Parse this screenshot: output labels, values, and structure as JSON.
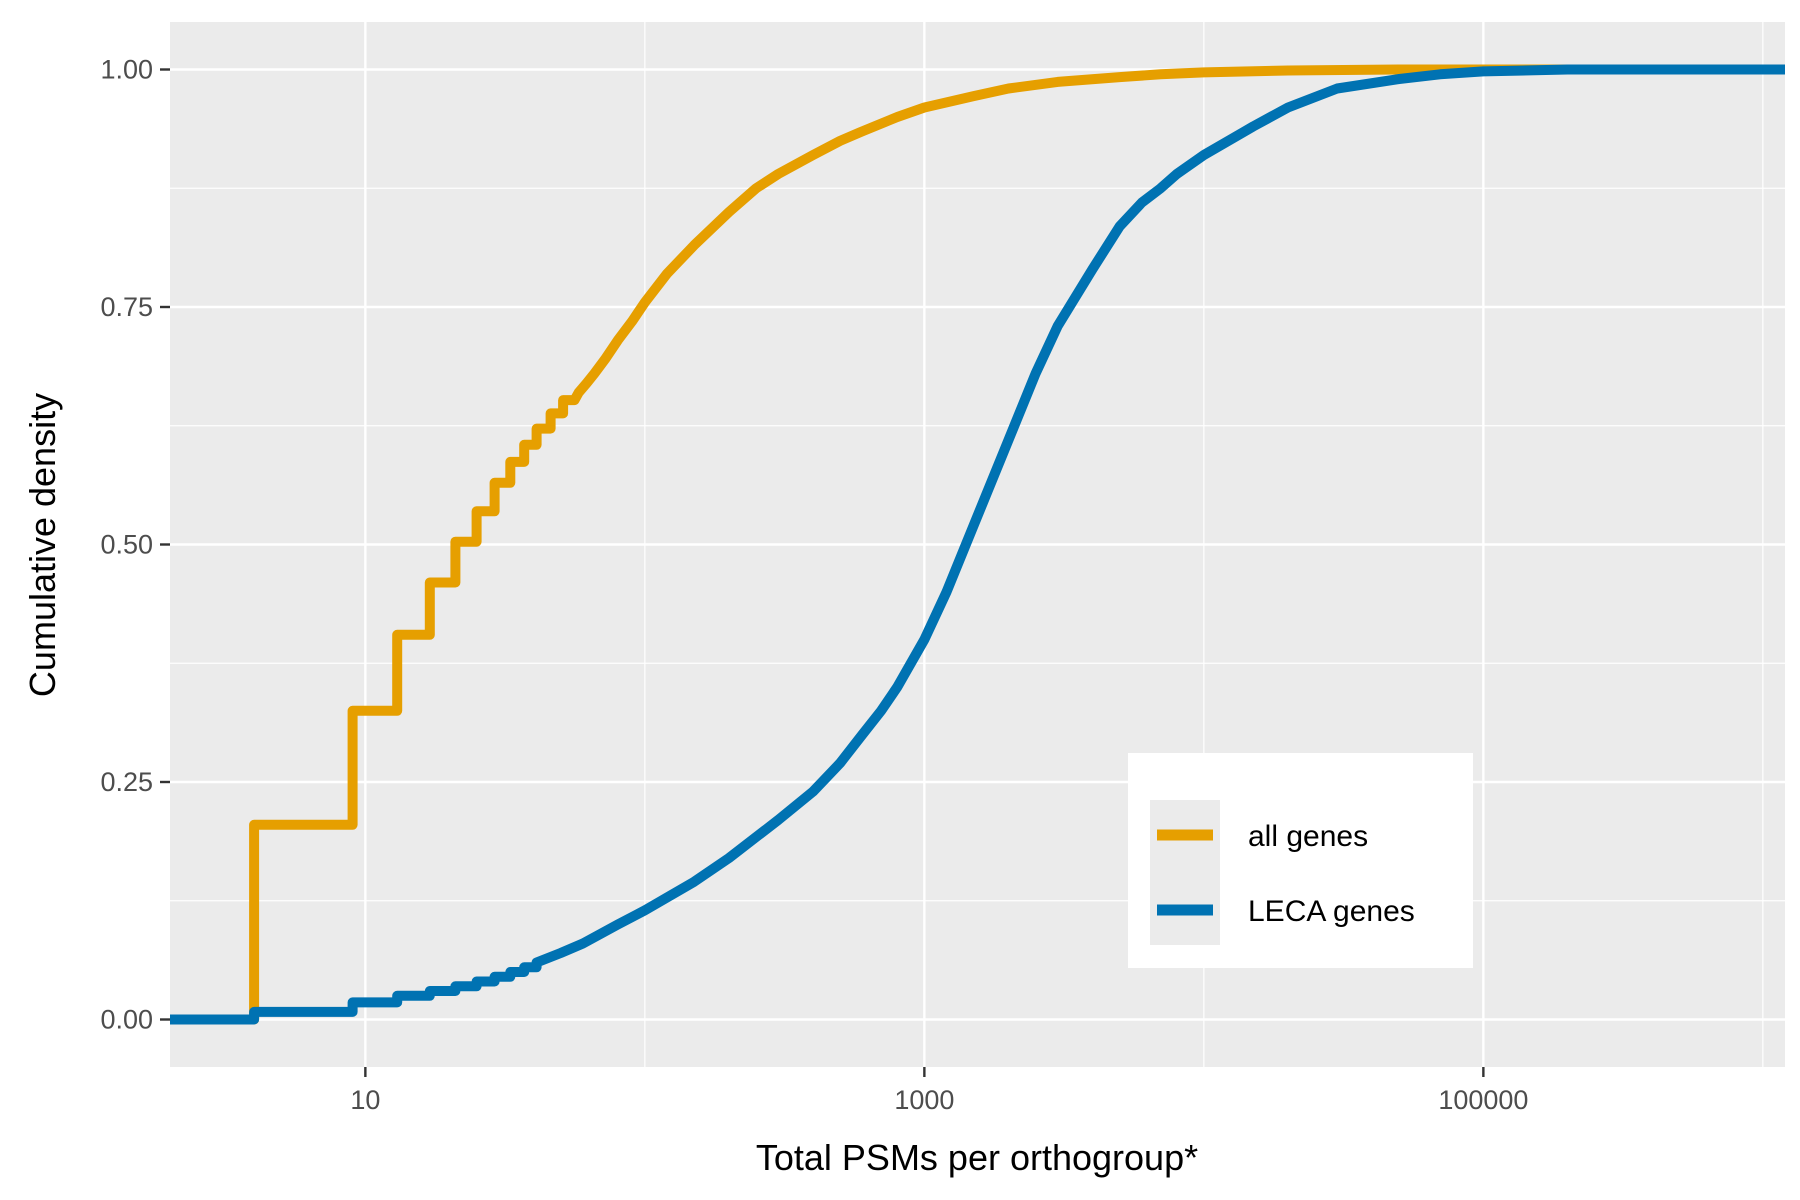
{
  "chart_data": {
    "type": "line",
    "xlabel": "Total PSMs per orthogroup*",
    "ylabel": "Cumulative density",
    "x_scale": "log10",
    "xlim": [
      2,
      1200000
    ],
    "ylim": [
      -0.05,
      1.05
    ],
    "x_ticks": [
      10,
      1000,
      100000
    ],
    "x_tick_labels": [
      "10",
      "1000",
      "100000"
    ],
    "y_ticks": [
      0,
      0.25,
      0.5,
      0.75,
      1.0
    ],
    "y_tick_labels": [
      "0.00",
      "0.25",
      "0.50",
      "0.75",
      "1.00"
    ],
    "grid": true,
    "legend_position": "bottom-right",
    "series": [
      {
        "name": "all genes",
        "color": "#E69F00",
        "x": [
          2,
          4,
          4,
          9,
          9,
          13,
          13,
          17,
          17,
          21,
          21,
          25,
          25,
          29,
          29,
          33,
          33,
          37,
          37,
          41,
          41,
          46,
          46,
          51,
          51,
          56,
          58,
          62,
          66,
          72,
          80,
          90,
          100,
          120,
          150,
          200,
          250,
          300,
          400,
          500,
          600,
          800,
          1000,
          1500,
          2000,
          3000,
          5000,
          7000,
          10000,
          20000,
          50000,
          100000,
          300000,
          1200000
        ],
        "y": [
          0,
          0,
          0.205,
          0.205,
          0.325,
          0.325,
          0.405,
          0.405,
          0.46,
          0.46,
          0.503,
          0.503,
          0.535,
          0.535,
          0.565,
          0.565,
          0.587,
          0.587,
          0.605,
          0.605,
          0.622,
          0.622,
          0.638,
          0.638,
          0.652,
          0.652,
          0.66,
          0.67,
          0.68,
          0.695,
          0.715,
          0.735,
          0.755,
          0.785,
          0.815,
          0.85,
          0.875,
          0.89,
          0.91,
          0.925,
          0.935,
          0.95,
          0.96,
          0.972,
          0.98,
          0.987,
          0.992,
          0.995,
          0.997,
          0.999,
          1.0,
          1.0,
          1.0,
          1.0
        ]
      },
      {
        "name": "LECA genes",
        "color": "#0072B2",
        "x": [
          2,
          4,
          4,
          9,
          9,
          13,
          13,
          17,
          17,
          21,
          21,
          25,
          25,
          29,
          29,
          33,
          33,
          37,
          37,
          41,
          41,
          50,
          60,
          80,
          100,
          150,
          200,
          300,
          400,
          500,
          600,
          700,
          800,
          1000,
          1200,
          1500,
          2000,
          2500,
          3000,
          4000,
          5000,
          6000,
          7000,
          8000,
          10000,
          15000,
          20000,
          30000,
          50000,
          70000,
          100000,
          200000,
          500000,
          1200000
        ],
        "y": [
          0,
          0,
          0.008,
          0.008,
          0.018,
          0.018,
          0.025,
          0.025,
          0.03,
          0.03,
          0.035,
          0.035,
          0.04,
          0.04,
          0.045,
          0.045,
          0.05,
          0.05,
          0.055,
          0.055,
          0.06,
          0.07,
          0.08,
          0.1,
          0.115,
          0.145,
          0.17,
          0.21,
          0.24,
          0.27,
          0.3,
          0.325,
          0.35,
          0.4,
          0.45,
          0.52,
          0.61,
          0.68,
          0.73,
          0.79,
          0.835,
          0.86,
          0.875,
          0.89,
          0.91,
          0.94,
          0.96,
          0.98,
          0.99,
          0.995,
          0.998,
          1.0,
          1.0,
          1.0
        ]
      }
    ]
  }
}
